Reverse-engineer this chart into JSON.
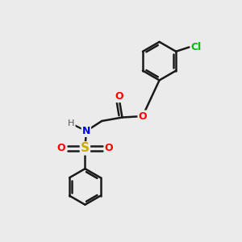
{
  "bg_color": "#ebebeb",
  "bond_color": "#1a1a1a",
  "bond_width": 1.8,
  "rbo": 0.09,
  "atoms": {
    "Cl": {
      "color": "#00bb00"
    },
    "O": {
      "color": "#ff0000"
    },
    "N": {
      "color": "#0000ff"
    },
    "H": {
      "color": "#555555"
    },
    "S": {
      "color": "#ccaa00"
    }
  },
  "figsize": [
    3.0,
    3.0
  ],
  "dpi": 100
}
